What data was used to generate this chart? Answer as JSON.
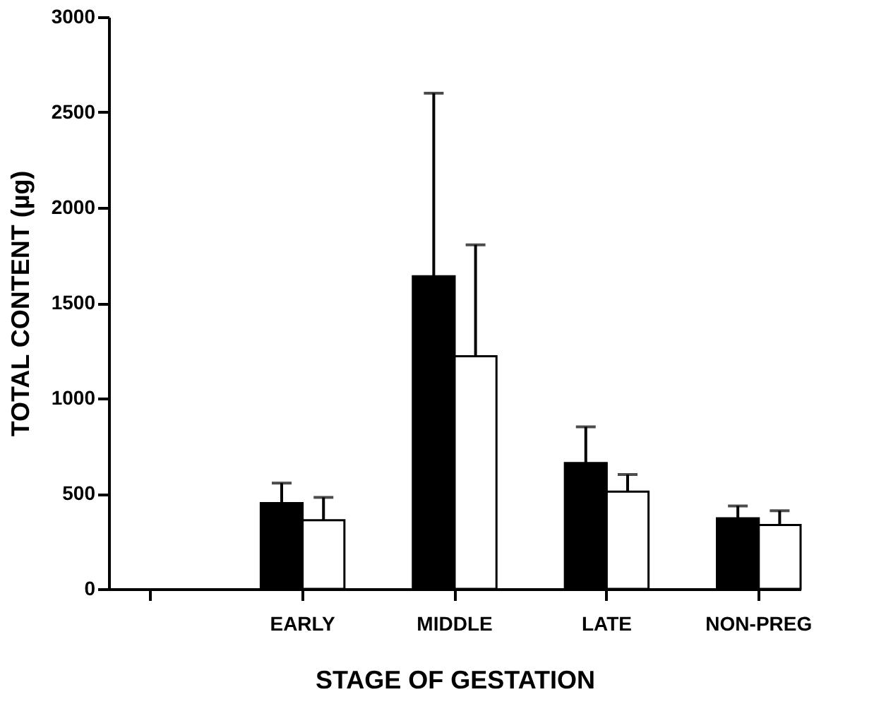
{
  "chart_data": {
    "type": "bar",
    "xlabel": "STAGE OF GESTATION",
    "ylabel": "TOTAL CONTENT (µg)",
    "categories": [
      null,
      "EARLY",
      "MIDDLE",
      "LATE",
      "NON-PREG"
    ],
    "series": [
      {
        "color": "#000000",
        "values": [
          null,
          450,
          1640,
          660,
          370
        ],
        "errors": [
          null,
          [
            450,
            555
          ],
          [
            1640,
            2600
          ],
          [
            660,
            850
          ],
          [
            370,
            435
          ]
        ]
      },
      {
        "color": "#ffffff",
        "values": [
          null,
          360,
          1220,
          510,
          335
        ],
        "errors": [
          null,
          [
            360,
            480
          ],
          [
            1220,
            1805
          ],
          [
            510,
            600
          ],
          [
            335,
            410
          ]
        ]
      }
    ],
    "ylim": [
      0,
      3000
    ],
    "yticks": [
      0,
      500,
      1000,
      1500,
      2000,
      2500,
      3000
    ],
    "grid": false,
    "legend": false
  }
}
